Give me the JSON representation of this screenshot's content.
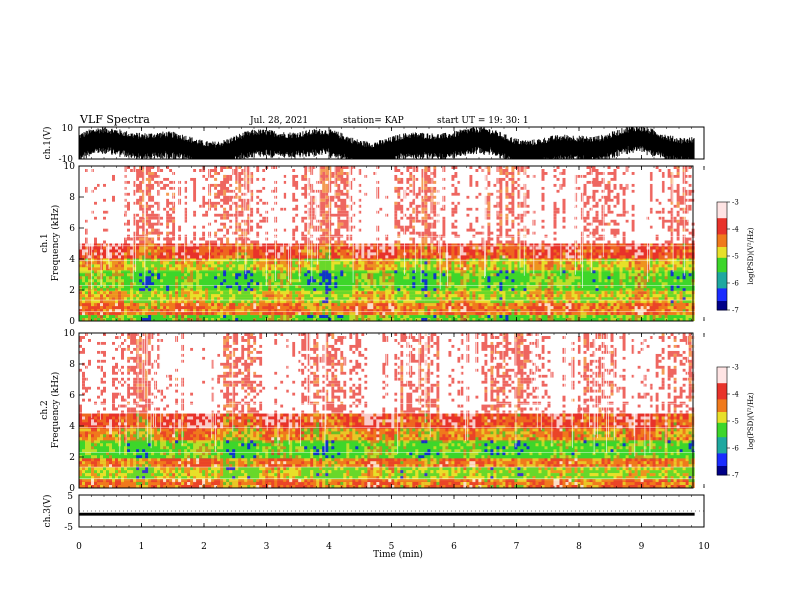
{
  "header": {
    "title": "VLF Spectra",
    "date": "Jul. 28, 2021",
    "station": "station= KAP",
    "start": "start UT =   19: 30: 1"
  },
  "colors": {
    "background_red": "#e8332b",
    "orange": "#f07a1c",
    "yellow": "#e8e02a",
    "green": "#3dd62b",
    "blue": "#0000ff",
    "white": "#ffffff"
  },
  "chart_data": [
    {
      "type": "line",
      "name": "ch1-waveform",
      "ylabel": "ch.1(V)",
      "ylim": [
        -10,
        10
      ],
      "yticks": [
        "10",
        "-10"
      ],
      "xlim": [
        0,
        10
      ]
    },
    {
      "type": "heatmap",
      "name": "ch1-spectrogram",
      "ylabel_line1": "ch.1",
      "ylabel_line2": "Frequency (kHz)",
      "ylim": [
        0,
        10
      ],
      "yticks": [
        "0",
        "2",
        "4",
        "6",
        "8",
        "10"
      ],
      "xlim": [
        0,
        9.85
      ],
      "colorbar": {
        "label": "log(PSD)(V²/Hz)",
        "range": [
          -7,
          -3
        ],
        "ticks": [
          "-3",
          "-4",
          "-5",
          "-6",
          "-7"
        ]
      },
      "bands": [
        {
          "from": 0,
          "to": 0.4,
          "level": -5.2
        },
        {
          "from": 0.4,
          "to": 1.2,
          "level": -4.3
        },
        {
          "from": 1.2,
          "to": 2.0,
          "level": -4.9
        },
        {
          "from": 2.0,
          "to": 3.2,
          "level": -5.3
        },
        {
          "from": 3.2,
          "to": 4.0,
          "level": -4.8
        },
        {
          "from": 4.0,
          "to": 5.0,
          "level": -4.1
        },
        {
          "from": 5.0,
          "to": 10,
          "level": -3.4
        }
      ]
    },
    {
      "type": "heatmap",
      "name": "ch2-spectrogram",
      "ylabel_line1": "ch.2",
      "ylabel_line2": "Frequency (kHz)",
      "ylim": [
        0,
        10
      ],
      "yticks": [
        "0",
        "2",
        "4",
        "6",
        "8",
        "10"
      ],
      "xlim": [
        0,
        9.85
      ],
      "colorbar": {
        "label": "log(PSD)(V²/Hz)",
        "range": [
          -7,
          -3
        ],
        "ticks": [
          "-3",
          "-4",
          "-5",
          "-6",
          "-7"
        ]
      },
      "bands": [
        {
          "from": 0,
          "to": 0.5,
          "level": -4.3
        },
        {
          "from": 0.5,
          "to": 1.3,
          "level": -5.1
        },
        {
          "from": 1.3,
          "to": 1.9,
          "level": -4.4
        },
        {
          "from": 1.9,
          "to": 3.0,
          "level": -5.3
        },
        {
          "from": 3.0,
          "to": 3.8,
          "level": -4.6
        },
        {
          "from": 3.8,
          "to": 4.8,
          "level": -4.1
        },
        {
          "from": 4.8,
          "to": 10,
          "level": -3.4
        }
      ]
    },
    {
      "type": "line",
      "name": "ch3-waveform",
      "ylabel": "ch.3(V)",
      "ylim": [
        -5,
        5
      ],
      "yticks": [
        "5",
        "0",
        "-5"
      ],
      "mean": -1,
      "xlim": [
        0,
        10
      ]
    }
  ],
  "xaxis": {
    "label": "Time (min)",
    "ticks": [
      "0",
      "1",
      "2",
      "3",
      "4",
      "5",
      "6",
      "7",
      "8",
      "9",
      "10"
    ],
    "range": [
      0,
      10
    ]
  }
}
